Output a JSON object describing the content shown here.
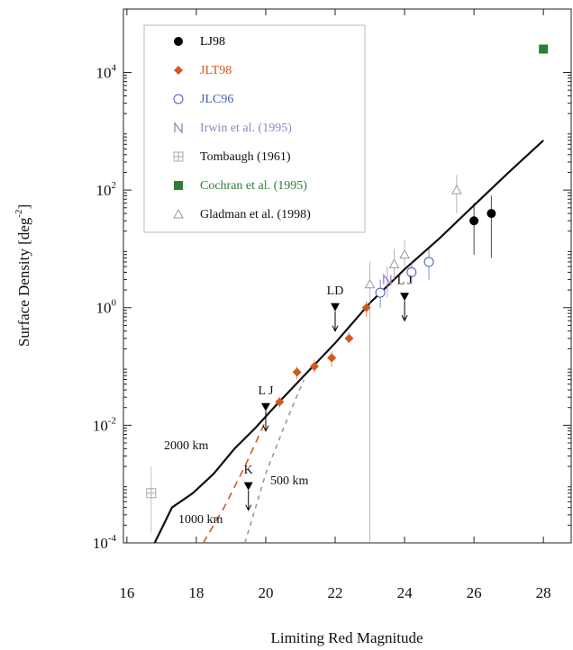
{
  "chart_data": {
    "type": "scatter",
    "x_label": "Limiting Red Magnitude",
    "y_label": "Surface Density [deg^-2]",
    "xlim": [
      15.9,
      28.8
    ],
    "xticks": [
      16,
      18,
      20,
      22,
      24,
      26,
      28
    ],
    "ylim": [
      0.0001,
      120000
    ],
    "yticks": [
      {
        "value": 0.0001,
        "label": "10^-4"
      },
      {
        "value": 0.01,
        "label": "10^-2"
      },
      {
        "value": 1,
        "label": "10^0"
      },
      {
        "value": 100,
        "label": "10^2"
      },
      {
        "value": 10000,
        "label": "10^4"
      }
    ],
    "log_y": true,
    "series": [
      {
        "name": "LJ98",
        "color": "#000000",
        "marker": "circle",
        "x": [
          26.0,
          26.5
        ],
        "values": [
          30,
          40
        ],
        "err_low": [
          8,
          7
        ],
        "err_high": [
          60,
          80
        ]
      },
      {
        "name": "JLT98",
        "color": "#d4581e",
        "marker": "diamond",
        "x": [
          20.4,
          20.9,
          21.4,
          21.9,
          22.4,
          22.9
        ],
        "values": [
          0.025,
          0.08,
          0.1,
          0.14,
          0.3,
          1.0
        ],
        "err_low": [
          0.02,
          0.06,
          0.08,
          0.1,
          0.25,
          0.7
        ],
        "err_high": [
          0.03,
          0.1,
          0.13,
          0.18,
          0.38,
          1.3
        ]
      },
      {
        "name": "JLC96",
        "color": "#4a5bb5",
        "marker": "open-circle",
        "x": [
          23.3,
          24.2,
          24.7
        ],
        "values": [
          1.8,
          4,
          6
        ],
        "err_low": [
          1,
          2.5,
          3
        ],
        "err_high": [
          3,
          6,
          10
        ]
      },
      {
        "name": "Irwin et al. (1995)",
        "color": "#9a7fc0",
        "marker": "N",
        "x": [
          23.5
        ],
        "values": [
          3
        ],
        "err_low": [
          1.5
        ],
        "err_high": [
          5
        ]
      },
      {
        "name": "Tombaugh (1961)",
        "color": "#aaaaaa",
        "label_color": "#111111",
        "marker": "square-cross",
        "x": [
          16.7
        ],
        "values": [
          0.0007
        ],
        "err_low": [
          0.00015
        ],
        "err_high": [
          0.002
        ]
      },
      {
        "name": "Cochran et al. (1995)",
        "color": "#2e7d32",
        "marker": "square",
        "x": [
          28
        ],
        "values": [
          25000
        ]
      },
      {
        "name": "Gladman et al. (1998)",
        "color": "#999999",
        "label_color": "#111111",
        "marker": "triangle",
        "x": [
          23,
          23.7,
          24,
          25.5
        ],
        "values": [
          2.5,
          5.5,
          8,
          100
        ],
        "err_low": [
          0.0001,
          3,
          5,
          40
        ],
        "err_high": [
          6,
          10,
          14,
          180
        ]
      }
    ],
    "lines": [
      {
        "label": "2000 km",
        "color": "#111111",
        "dash": "none",
        "x": [
          16.8,
          17.3,
          17.9,
          18.5,
          19.1,
          19.7,
          20.3,
          21,
          22,
          23,
          24,
          25,
          26,
          27,
          28
        ],
        "values": [
          0.0001,
          0.0004,
          0.0007,
          0.0015,
          0.004,
          0.009,
          0.022,
          0.06,
          0.25,
          1.2,
          4.5,
          15,
          55,
          200,
          700
        ]
      },
      {
        "label": "1000 km",
        "color": "#d4581e",
        "dash": "8 6",
        "x": [
          18.2,
          18.8,
          19.4,
          20
        ],
        "values": [
          0.0001,
          0.0004,
          0.002,
          0.012
        ]
      },
      {
        "label": "500 km",
        "color": "#999999",
        "dash": "5 5",
        "x": [
          19.4,
          20,
          20.6,
          21.1
        ],
        "values": [
          0.0001,
          0.0015,
          0.012,
          0.06
        ]
      }
    ],
    "limits": {
      "x": [
        20,
        22,
        24,
        19.5
      ],
      "values": [
        0.02,
        1.0,
        1.5,
        0.0009
      ],
      "labels": [
        "L J",
        "LD",
        "L J",
        "K"
      ]
    }
  }
}
